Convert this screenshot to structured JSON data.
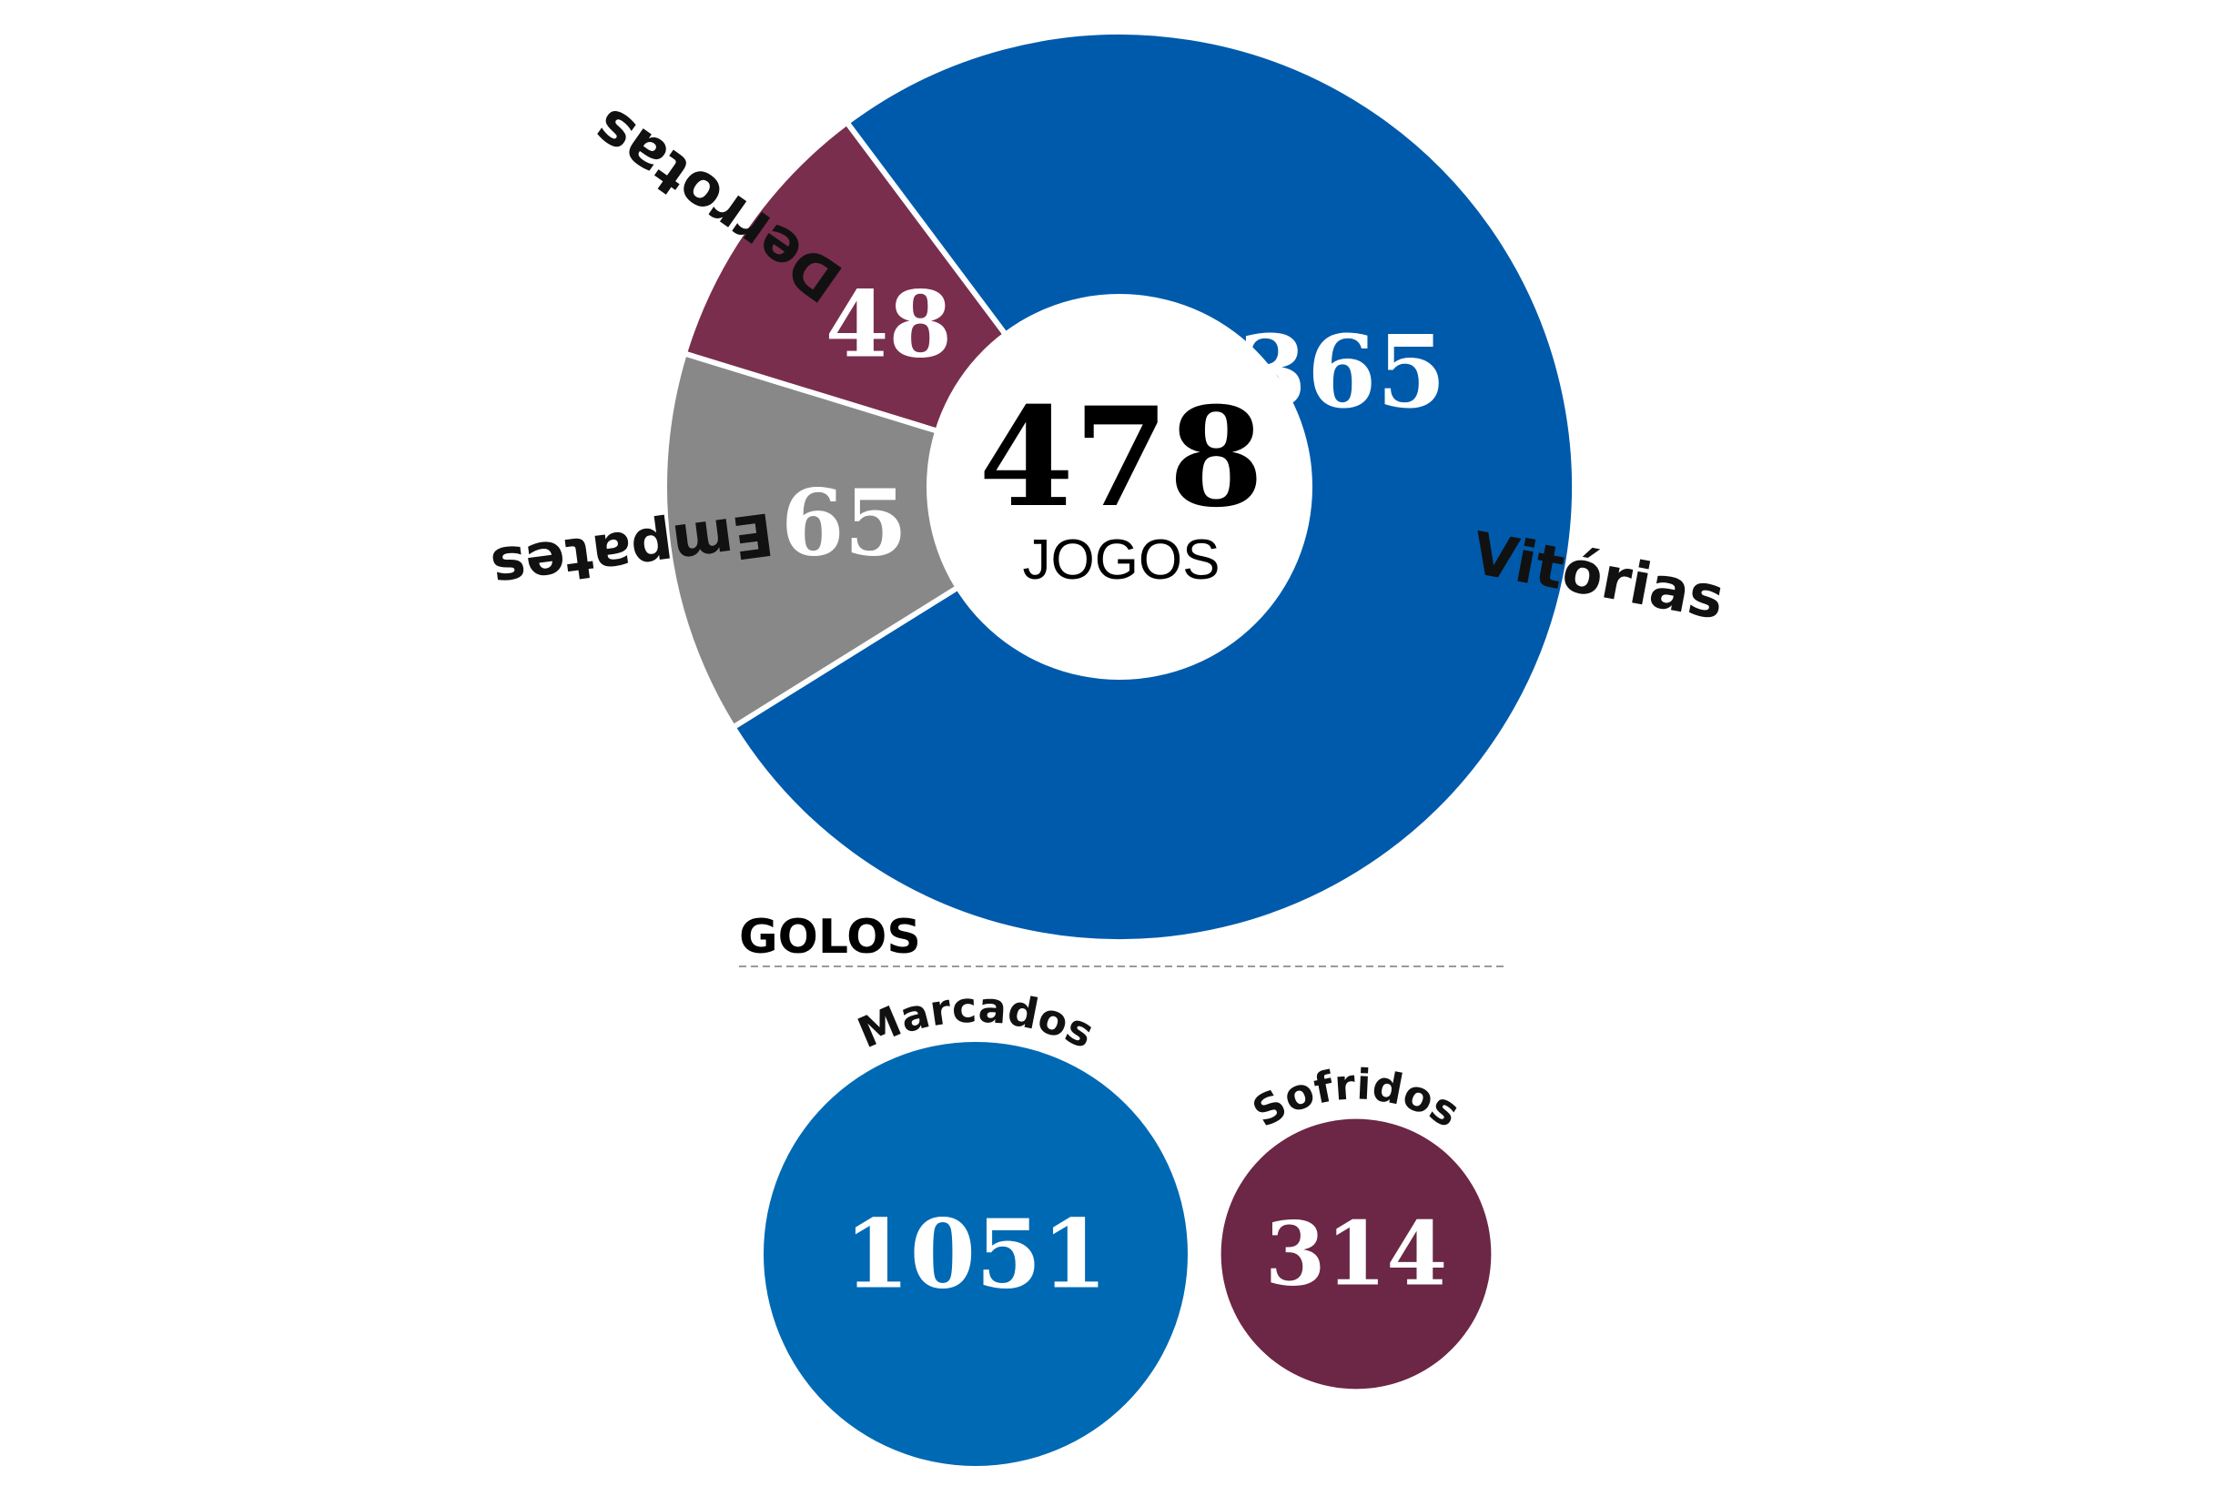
{
  "chart_data": [
    {
      "type": "pie",
      "center_value": "478",
      "center_label": "JOGOS",
      "slices": [
        {
          "label": "Vitórias",
          "value": 365,
          "color": "#005AAB"
        },
        {
          "label": "Empates",
          "value": 65,
          "color": "#888888"
        },
        {
          "label": "Derrotas",
          "value": 48,
          "color": "#7A2E4E"
        }
      ]
    },
    {
      "type": "bubble",
      "title": "GOLOS",
      "items": [
        {
          "label": "Marcados",
          "value": 1051,
          "color": "#0069B4"
        },
        {
          "label": "Sofridos",
          "value": 314,
          "color": "#6B2745"
        }
      ]
    }
  ]
}
